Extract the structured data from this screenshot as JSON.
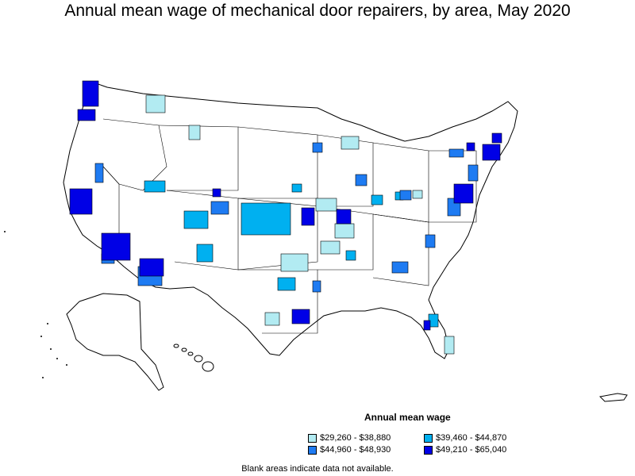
{
  "title": "Annual mean wage of mechanical door repairers, by area, May 2020",
  "legend": {
    "title": "Annual mean wage",
    "items": [
      {
        "label": "$29,260 - $38,880",
        "color": "#b2ebf2"
      },
      {
        "label": "$39,460 - $44,870",
        "color": "#00b0f0"
      },
      {
        "label": "$44,960 - $48,930",
        "color": "#1e7bf2"
      },
      {
        "label": "$49,210 - $65,040",
        "color": "#0000e6"
      }
    ]
  },
  "footnote": "Blank areas indicate data not available.",
  "colors": {
    "boundary": "#000000",
    "no_data": "#ffffff",
    "tier1": "#b2ebf2",
    "tier2": "#00b0f0",
    "tier3": "#1e7bf2",
    "tier4": "#0000e6"
  }
}
